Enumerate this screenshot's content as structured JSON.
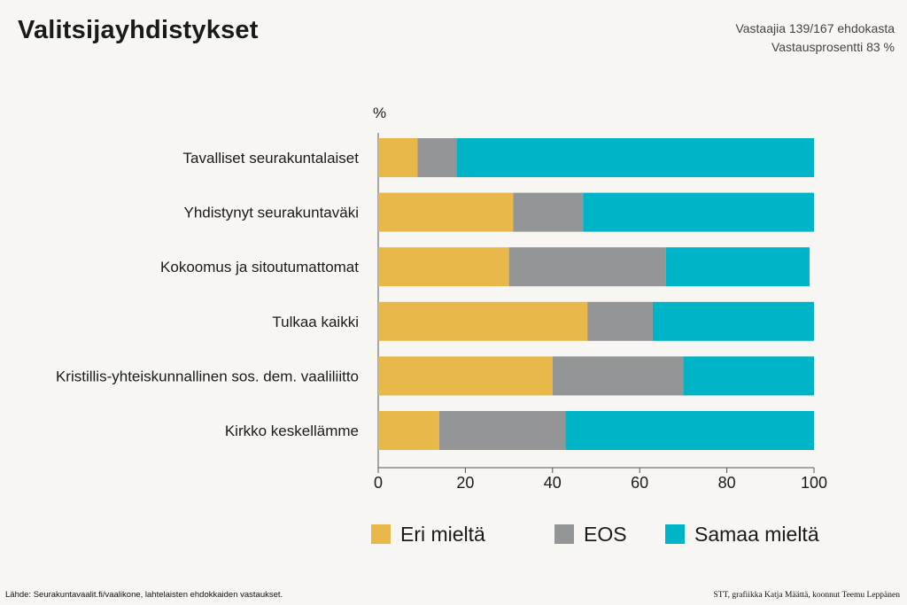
{
  "header": {
    "title": "Valitsijayhdistykset",
    "respondents": "Vastaajia 139/167 ehdokasta",
    "response_rate": "Vastausprosentti 83 %"
  },
  "footer": {
    "source": "Lähde: Seurakuntavaalit.fi/vaalikone, lahtelaisten ehdokkaiden vastaukset.",
    "credits": "STT, grafiikka Katja Määttä, koonnut Teemu Leppänen"
  },
  "colors": {
    "eri": "#e8b94a",
    "eos": "#939597",
    "samaa": "#00b4c8"
  },
  "chart_data": {
    "type": "bar",
    "orientation": "horizontal",
    "stacked": true,
    "unit_label": "%",
    "xlim": [
      0,
      100
    ],
    "xticks": [
      0,
      20,
      40,
      60,
      80,
      100
    ],
    "categories": [
      "Tavalliset seurakuntalaiset",
      "Yhdistynyt seurakuntaväki",
      "Kokoomus ja sitoutumattomat",
      "Tulkaa kaikki",
      "Kristillis-yhteiskunnallinen sos. dem. vaaliliitto",
      "Kirkko keskellämme"
    ],
    "series": [
      {
        "name": "Eri mieltä",
        "color": "#e8b94a",
        "values": [
          9,
          31,
          30,
          48,
          40,
          14
        ]
      },
      {
        "name": "EOS",
        "color": "#939597",
        "values": [
          9,
          16,
          36,
          15,
          30,
          29
        ]
      },
      {
        "name": "Samaa mieltä",
        "color": "#00b4c8",
        "values": [
          82,
          53,
          33,
          37,
          30,
          57
        ]
      }
    ],
    "legend_position": "bottom"
  }
}
